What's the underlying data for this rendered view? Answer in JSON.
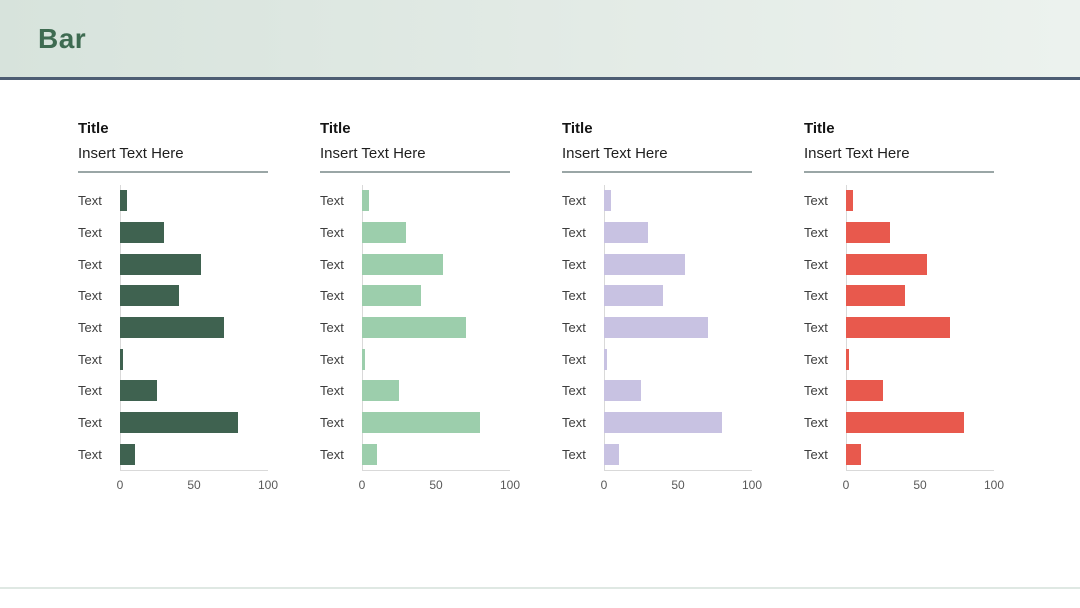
{
  "header": {
    "title": "Bar",
    "title_color": "#3e6b51",
    "band_color_left": "#d7e3dc",
    "band_color_right": "#ecf2ee",
    "band_border_color": "#4d5d73"
  },
  "chart_data": [
    {
      "type": "bar",
      "orientation": "horizontal",
      "title": "Title",
      "subtitle": "Insert Text Here",
      "categories": [
        "Text",
        "Text",
        "Text",
        "Text",
        "Text",
        "Text",
        "Text",
        "Text",
        "Text"
      ],
      "values": [
        5,
        30,
        55,
        40,
        70,
        2,
        25,
        80,
        10
      ],
      "xlim": [
        0,
        100
      ],
      "xticks": [
        0,
        50,
        100
      ],
      "bar_color": "#3f6250",
      "grid": false,
      "legend": false
    },
    {
      "type": "bar",
      "orientation": "horizontal",
      "title": "Title",
      "subtitle": "Insert Text Here",
      "categories": [
        "Text",
        "Text",
        "Text",
        "Text",
        "Text",
        "Text",
        "Text",
        "Text",
        "Text"
      ],
      "values": [
        5,
        30,
        55,
        40,
        70,
        2,
        25,
        80,
        10
      ],
      "xlim": [
        0,
        100
      ],
      "xticks": [
        0,
        50,
        100
      ],
      "bar_color": "#9cceac",
      "grid": false,
      "legend": false
    },
    {
      "type": "bar",
      "orientation": "horizontal",
      "title": "Title",
      "subtitle": "Insert Text Here",
      "categories": [
        "Text",
        "Text",
        "Text",
        "Text",
        "Text",
        "Text",
        "Text",
        "Text",
        "Text"
      ],
      "values": [
        5,
        30,
        55,
        40,
        70,
        2,
        25,
        80,
        10
      ],
      "xlim": [
        0,
        100
      ],
      "xticks": [
        0,
        50,
        100
      ],
      "bar_color": "#c8c2e2",
      "grid": false,
      "legend": false
    },
    {
      "type": "bar",
      "orientation": "horizontal",
      "title": "Title",
      "subtitle": "Insert Text Here",
      "categories": [
        "Text",
        "Text",
        "Text",
        "Text",
        "Text",
        "Text",
        "Text",
        "Text",
        "Text"
      ],
      "values": [
        5,
        30,
        55,
        40,
        70,
        2,
        25,
        80,
        10
      ],
      "xlim": [
        0,
        100
      ],
      "xticks": [
        0,
        50,
        100
      ],
      "bar_color": "#e8594d",
      "grid": false,
      "legend": false
    }
  ],
  "colors": {
    "axis_line": "#d9d9d9",
    "tick_text": "#595959",
    "row_label_text": "#3d3d3d",
    "chart_divider": "#9aa6a6",
    "bottom_line": "#dfe8e3"
  }
}
